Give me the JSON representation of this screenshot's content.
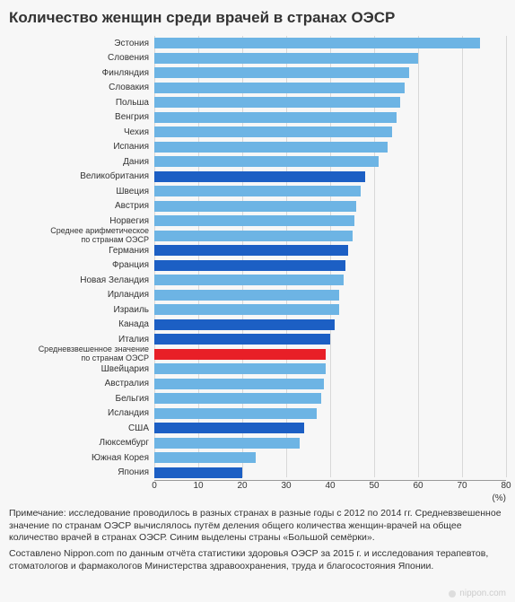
{
  "title": "Количество женщин среди врачей в странах ОЭСР",
  "chart": {
    "type": "bar",
    "xmin": 0,
    "xmax": 80,
    "xtick_step": 10,
    "xticks": [
      0,
      10,
      20,
      30,
      40,
      50,
      60,
      70,
      80
    ],
    "axis_label": "(%)",
    "grid_color": "#d8d8d8",
    "background_color": "#f7f7f7",
    "label_fontsize": 10,
    "colors": {
      "normal": "#6db4e4",
      "g7": "#1c5fc4",
      "weighted": "#e81f27"
    },
    "rows": [
      {
        "label": "Эстония",
        "value": 74,
        "style": "normal"
      },
      {
        "label": "Словения",
        "value": 60,
        "style": "normal"
      },
      {
        "label": "Финляндия",
        "value": 58,
        "style": "normal"
      },
      {
        "label": "Словакия",
        "value": 57,
        "style": "normal"
      },
      {
        "label": "Польша",
        "value": 56,
        "style": "normal"
      },
      {
        "label": "Венгрия",
        "value": 55,
        "style": "normal"
      },
      {
        "label": "Чехия",
        "value": 54,
        "style": "normal"
      },
      {
        "label": "Испания",
        "value": 53,
        "style": "normal"
      },
      {
        "label": "Дания",
        "value": 51,
        "style": "normal"
      },
      {
        "label": "Великобритания",
        "value": 48,
        "style": "g7"
      },
      {
        "label": "Швеция",
        "value": 47,
        "style": "normal"
      },
      {
        "label": "Австрия",
        "value": 46,
        "style": "normal"
      },
      {
        "label": "Норвегия",
        "value": 45.5,
        "style": "normal"
      },
      {
        "label": "Среднее арифметическое\nпо странам ОЭСР",
        "value": 45,
        "style": "normal",
        "twoLine": true
      },
      {
        "label": "Германия",
        "value": 44,
        "style": "g7"
      },
      {
        "label": "Франция",
        "value": 43.5,
        "style": "g7"
      },
      {
        "label": "Новая Зеландия",
        "value": 43,
        "style": "normal"
      },
      {
        "label": "Ирландия",
        "value": 42,
        "style": "normal"
      },
      {
        "label": "Израиль",
        "value": 42,
        "style": "normal"
      },
      {
        "label": "Канада",
        "value": 41,
        "style": "g7"
      },
      {
        "label": "Италия",
        "value": 40,
        "style": "g7"
      },
      {
        "label": "Средневзвешенное значение\nпо странам ОЭСР",
        "value": 39,
        "style": "weighted",
        "twoLine": true
      },
      {
        "label": "Швейцария",
        "value": 39,
        "style": "normal"
      },
      {
        "label": "Австралия",
        "value": 38.5,
        "style": "normal"
      },
      {
        "label": "Бельгия",
        "value": 38,
        "style": "normal"
      },
      {
        "label": "Исландия",
        "value": 37,
        "style": "normal"
      },
      {
        "label": "США",
        "value": 34,
        "style": "g7"
      },
      {
        "label": "Люксембург",
        "value": 33,
        "style": "normal"
      },
      {
        "label": "Южная Корея",
        "value": 23,
        "style": "normal"
      },
      {
        "label": "Япония",
        "value": 20,
        "style": "g7"
      }
    ]
  },
  "notes": {
    "paragraph1": "Примечание: исследование проводилось в разных странах в разные годы с 2012 по 2014 гг. Средневзвешенное значение по странам ОЭСР вычислялось путём деления общего количества женщин-врачей на общее количество врачей в странах ОЭСР. Синим выделены страны «Большой семёрки».",
    "paragraph2": "Составлено Nippon.com по данным отчёта статистики здоровья ОЭСР за 2015 г. и исследования терапевтов, стоматологов и фармакологов Министерства здравоохранения, труда и благосостояния Японии."
  },
  "watermark": "nippon.com"
}
